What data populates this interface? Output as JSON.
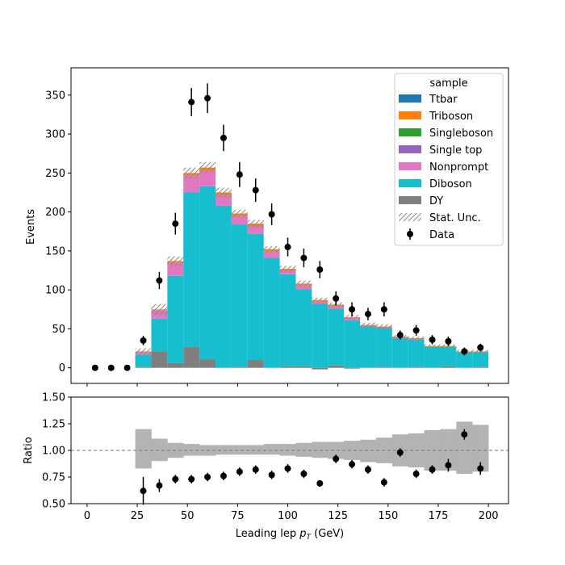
{
  "chart_data": [
    {
      "type": "bar",
      "stacked": true,
      "xlabel": "Leading lep p_T (GeV)",
      "xlabel_base": "Leading lep ",
      "xlabel_sym": "p",
      "xlabel_sub": "T",
      "xlabel_unit": " (GeV)",
      "ylabel": "Events",
      "xlim": [
        -8,
        210
      ],
      "ylim": [
        -20,
        385
      ],
      "x_ticks": [
        0,
        25,
        50,
        75,
        100,
        125,
        150,
        175,
        200
      ],
      "y_ticks": [
        0,
        50,
        100,
        150,
        200,
        250,
        300,
        350
      ],
      "bin_edges": [
        0,
        8,
        16,
        24,
        32,
        40,
        48,
        56,
        64,
        72,
        80,
        88,
        96,
        104,
        112,
        120,
        128,
        136,
        144,
        152,
        160,
        168,
        176,
        184,
        192,
        200
      ],
      "legend": {
        "title": "sample",
        "position": "top-right",
        "entries": [
          "Ttbar",
          "Triboson",
          "Singleboson",
          "Single top",
          "Nonprompt",
          "Diboson",
          "DY",
          "Stat. Unc.",
          "Data"
        ]
      },
      "series": [
        {
          "name": "DY",
          "color": "#7f7f7f",
          "values": [
            0,
            0,
            0,
            1,
            21,
            6,
            27,
            11,
            0,
            1,
            10,
            0,
            2,
            2,
            -2,
            3,
            -1,
            0,
            1,
            0,
            1,
            0,
            2,
            0,
            1
          ]
        },
        {
          "name": "Diboson",
          "color": "#17becf",
          "values": [
            0,
            0,
            0,
            16,
            42,
            112,
            198,
            222,
            208,
            183,
            162,
            141,
            118,
            99,
            82,
            73,
            61,
            53,
            50,
            38,
            35,
            27,
            25,
            20,
            19
          ]
        },
        {
          "name": "Nonprompt",
          "color": "#e377c2",
          "values": [
            0,
            0,
            0,
            3,
            11,
            17,
            22,
            20,
            14,
            11,
            10,
            8,
            5,
            5,
            3,
            3,
            3,
            1,
            1,
            1,
            1,
            0,
            0,
            0,
            0
          ]
        },
        {
          "name": "Single top",
          "color": "#9467bd",
          "values": [
            0,
            0,
            0,
            0,
            0,
            0,
            0,
            0,
            0,
            0,
            0,
            0,
            0,
            0,
            0,
            0,
            0,
            0,
            0,
            0,
            0,
            0,
            0,
            0,
            0
          ]
        },
        {
          "name": "Singleboson",
          "color": "#2ca02c",
          "values": [
            0,
            0,
            0,
            0,
            0,
            0,
            0,
            0,
            0,
            0,
            0,
            0,
            0,
            0,
            0,
            0,
            0,
            0,
            0,
            0,
            0,
            0,
            0,
            0,
            0
          ]
        },
        {
          "name": "Triboson",
          "color": "#ff7f0e",
          "values": [
            0,
            0,
            0,
            1,
            1,
            2,
            3,
            4,
            3,
            3,
            3,
            3,
            2,
            2,
            2,
            2,
            1,
            1,
            1,
            1,
            1,
            1,
            1,
            1,
            1
          ]
        },
        {
          "name": "Ttbar",
          "color": "#1f77b4",
          "values": [
            0,
            0,
            0,
            0,
            0,
            0,
            0,
            0,
            0,
            0,
            0,
            0,
            0,
            0,
            0,
            0,
            0,
            0,
            0,
            0,
            0,
            0,
            0,
            0,
            0
          ]
        }
      ],
      "stat_unc": [
        0,
        0,
        0,
        4,
        7,
        6,
        7,
        7,
        6,
        5,
        5,
        4,
        4,
        4,
        3,
        3,
        3,
        3,
        3,
        2,
        2,
        2,
        2,
        2,
        2
      ],
      "data": {
        "name": "Data",
        "x": [
          4,
          12,
          20,
          28,
          36,
          44,
          52,
          60,
          68,
          76,
          84,
          92,
          100,
          108,
          116,
          124,
          132,
          140,
          148,
          156,
          164,
          172,
          180,
          188,
          196
        ],
        "y": [
          0,
          0,
          0,
          35,
          112,
          185,
          341,
          346,
          295,
          248,
          228,
          197,
          155,
          141,
          126,
          89,
          75,
          69,
          75,
          42,
          48,
          36,
          34,
          21,
          26
        ],
        "yerr": [
          0,
          0,
          0,
          6,
          11,
          14,
          18,
          19,
          17,
          16,
          15,
          14,
          12,
          12,
          11,
          9,
          9,
          8,
          9,
          6,
          7,
          6,
          6,
          5,
          5
        ]
      }
    },
    {
      "type": "scatter",
      "xlabel": "Leading lep p_T (GeV)",
      "ylabel": "Ratio",
      "xlim": [
        -8,
        210
      ],
      "ylim": [
        0.5,
        1.5
      ],
      "y_ticks": [
        "0.50",
        "0.75",
        "1.00",
        "1.25",
        "1.50"
      ],
      "y_tick_values": [
        0.5,
        0.75,
        1.0,
        1.25,
        1.5
      ],
      "reference_line": 1.0,
      "unc_band": {
        "lo": [
          null,
          null,
          null,
          0.83,
          0.9,
          0.93,
          0.95,
          0.95,
          0.96,
          0.96,
          0.96,
          0.96,
          0.95,
          0.94,
          0.93,
          0.92,
          0.91,
          0.89,
          0.88,
          0.85,
          0.84,
          0.81,
          0.81,
          0.78,
          0.8
        ],
        "hi": [
          null,
          null,
          null,
          1.2,
          1.11,
          1.07,
          1.06,
          1.05,
          1.05,
          1.05,
          1.05,
          1.06,
          1.06,
          1.07,
          1.08,
          1.08,
          1.09,
          1.1,
          1.12,
          1.15,
          1.16,
          1.19,
          1.2,
          1.27,
          1.24
        ]
      },
      "points": {
        "x": [
          28,
          36,
          44,
          52,
          60,
          68,
          76,
          84,
          92,
          100,
          108,
          116,
          124,
          132,
          140,
          148,
          156,
          164,
          172,
          180,
          188,
          196
        ],
        "y": [
          0.62,
          0.67,
          0.73,
          0.73,
          0.75,
          0.76,
          0.8,
          0.82,
          0.77,
          0.83,
          0.78,
          0.69,
          0.92,
          0.87,
          0.82,
          0.7,
          0.98,
          0.78,
          0.82,
          0.86,
          1.15,
          0.83
        ],
        "yerr": [
          0.13,
          0.06,
          0.04,
          0.04,
          0.04,
          0.04,
          0.04,
          0.04,
          0.04,
          0.04,
          0.04,
          0.03,
          0.04,
          0.04,
          0.04,
          0.04,
          0.04,
          0.04,
          0.04,
          0.06,
          0.05,
          0.06
        ]
      }
    }
  ]
}
